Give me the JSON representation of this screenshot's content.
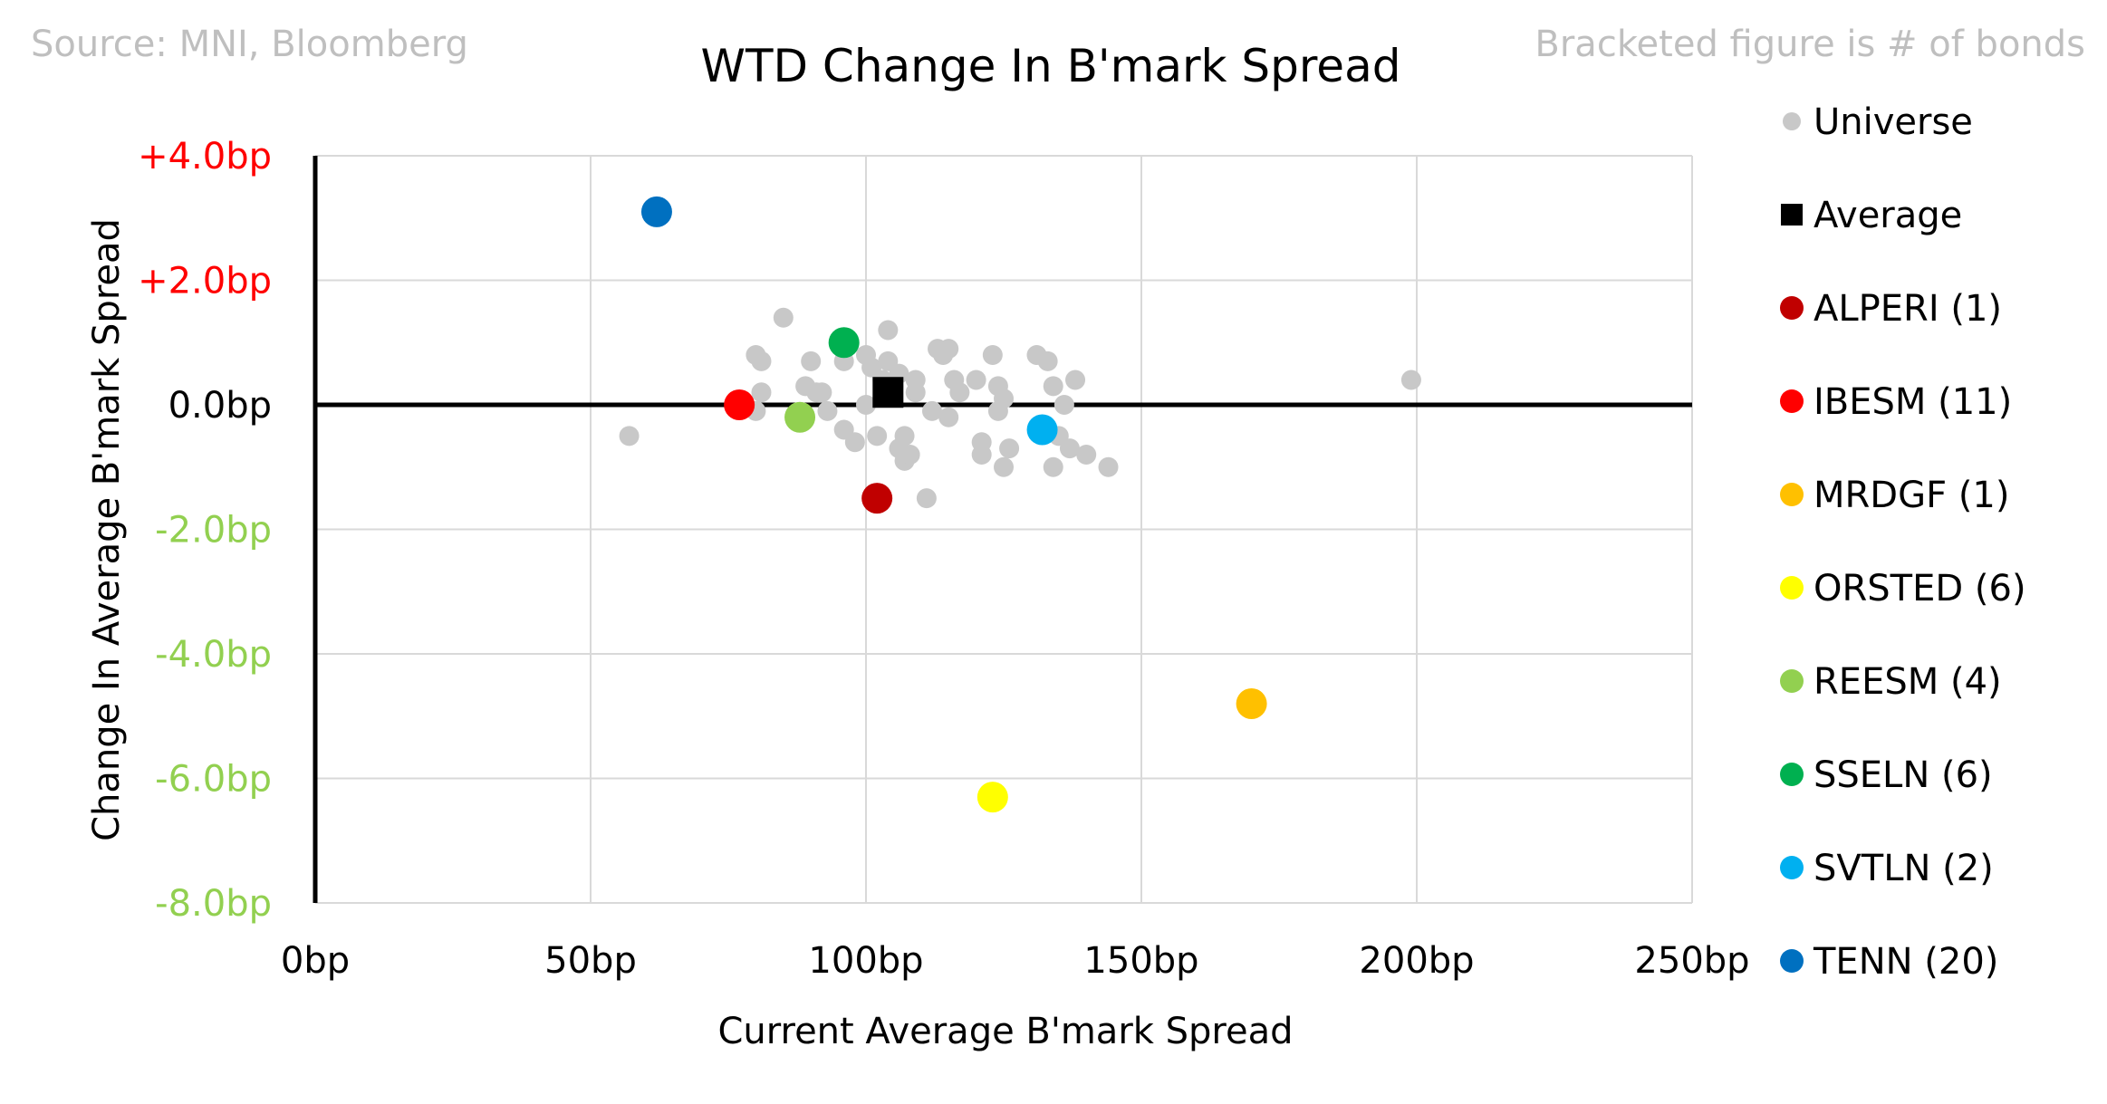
{
  "chart_data": {
    "type": "scatter",
    "title": "WTD Change In B'mark Spread",
    "source_note": "Source: MNI, Bloomberg",
    "bracket_note": "Bracketed figure is # of bonds",
    "xlabel": "Current Average B'mark Spread",
    "ylabel": "Change In Average B'mark Spread",
    "xlim": [
      0,
      250
    ],
    "ylim": [
      -8,
      4
    ],
    "x_ticks": [
      {
        "value": 0,
        "label": "0bp"
      },
      {
        "value": 50,
        "label": "50bp"
      },
      {
        "value": 100,
        "label": "100bp"
      },
      {
        "value": 150,
        "label": "150bp"
      },
      {
        "value": 200,
        "label": "200bp"
      },
      {
        "value": 250,
        "label": "250bp"
      }
    ],
    "y_ticks": [
      {
        "value": 4,
        "label": "+4.0bp",
        "color": "#ff0000"
      },
      {
        "value": 2,
        "label": "+2.0bp",
        "color": "#ff0000"
      },
      {
        "value": 0,
        "label": "0.0bp",
        "color": "#000000"
      },
      {
        "value": -2,
        "label": "-2.0bp",
        "color": "#92d050"
      },
      {
        "value": -4,
        "label": "-4.0bp",
        "color": "#92d050"
      },
      {
        "value": -6,
        "label": "-6.0bp",
        "color": "#92d050"
      },
      {
        "value": -8,
        "label": "-8.0bp",
        "color": "#92d050"
      }
    ],
    "grid": true,
    "legend_position": "right",
    "universe": {
      "name": "Universe",
      "color": "#c8c8c8",
      "points": [
        [
          57,
          -0.5
        ],
        [
          80,
          0.8
        ],
        [
          81,
          0.7
        ],
        [
          81,
          0.2
        ],
        [
          85,
          1.4
        ],
        [
          80,
          -0.1
        ],
        [
          89,
          0.3
        ],
        [
          90,
          0.7
        ],
        [
          91,
          0.2
        ],
        [
          92,
          0.2
        ],
        [
          93,
          -0.1
        ],
        [
          96,
          0.7
        ],
        [
          96,
          -0.4
        ],
        [
          98,
          -0.6
        ],
        [
          100,
          0.0
        ],
        [
          100,
          0.8
        ],
        [
          101,
          0.6
        ],
        [
          102,
          -0.5
        ],
        [
          103,
          0.4
        ],
        [
          104,
          1.2
        ],
        [
          104,
          0.7
        ],
        [
          105,
          0.3
        ],
        [
          106,
          -0.7
        ],
        [
          106,
          0.5
        ],
        [
          107,
          -0.9
        ],
        [
          107,
          -0.5
        ],
        [
          108,
          -0.8
        ],
        [
          109,
          0.2
        ],
        [
          109,
          0.4
        ],
        [
          111,
          -1.5
        ],
        [
          112,
          -0.1
        ],
        [
          113,
          0.9
        ],
        [
          114,
          0.8
        ],
        [
          115,
          0.9
        ],
        [
          115,
          -0.2
        ],
        [
          116,
          0.4
        ],
        [
          117,
          0.2
        ],
        [
          120,
          0.4
        ],
        [
          121,
          -0.6
        ],
        [
          121,
          -0.8
        ],
        [
          123,
          0.8
        ],
        [
          124,
          0.3
        ],
        [
          124,
          -0.1
        ],
        [
          125,
          0.1
        ],
        [
          125,
          -1.0
        ],
        [
          126,
          -0.7
        ],
        [
          131,
          0.8
        ],
        [
          133,
          0.7
        ],
        [
          134,
          0.3
        ],
        [
          134,
          -1.0
        ],
        [
          135,
          -0.5
        ],
        [
          136,
          0.0
        ],
        [
          137,
          -0.7
        ],
        [
          138,
          0.4
        ],
        [
          140,
          -0.8
        ],
        [
          144,
          -1.0
        ],
        [
          199,
          0.4
        ]
      ]
    },
    "average": {
      "name": "Average",
      "color": "#000000",
      "x": 104,
      "y": 0.2
    },
    "series": [
      {
        "name": "ALPERI",
        "count": "(1)",
        "color": "#c00000",
        "x": 102,
        "y": -1.5
      },
      {
        "name": "IBESM",
        "count": "(11)",
        "color": "#ff0000",
        "x": 77,
        "y": 0.0
      },
      {
        "name": "MRDGF",
        "count": "(1)",
        "color": "#ffc000",
        "x": 170,
        "y": -4.8
      },
      {
        "name": "ORSTED",
        "count": "(6)",
        "color": "#ffff00",
        "x": 123,
        "y": -6.3
      },
      {
        "name": "REESM",
        "count": "(4)",
        "color": "#92d050",
        "x": 88,
        "y": -0.2
      },
      {
        "name": "SSELN",
        "count": "(6)",
        "color": "#00b050",
        "x": 96,
        "y": 1.0
      },
      {
        "name": "SVTLN",
        "count": "(2)",
        "color": "#00b0f0",
        "x": 132,
        "y": -0.4
      },
      {
        "name": "TENN",
        "count": "(20)",
        "color": "#0070c0",
        "x": 62,
        "y": 3.1
      }
    ]
  }
}
